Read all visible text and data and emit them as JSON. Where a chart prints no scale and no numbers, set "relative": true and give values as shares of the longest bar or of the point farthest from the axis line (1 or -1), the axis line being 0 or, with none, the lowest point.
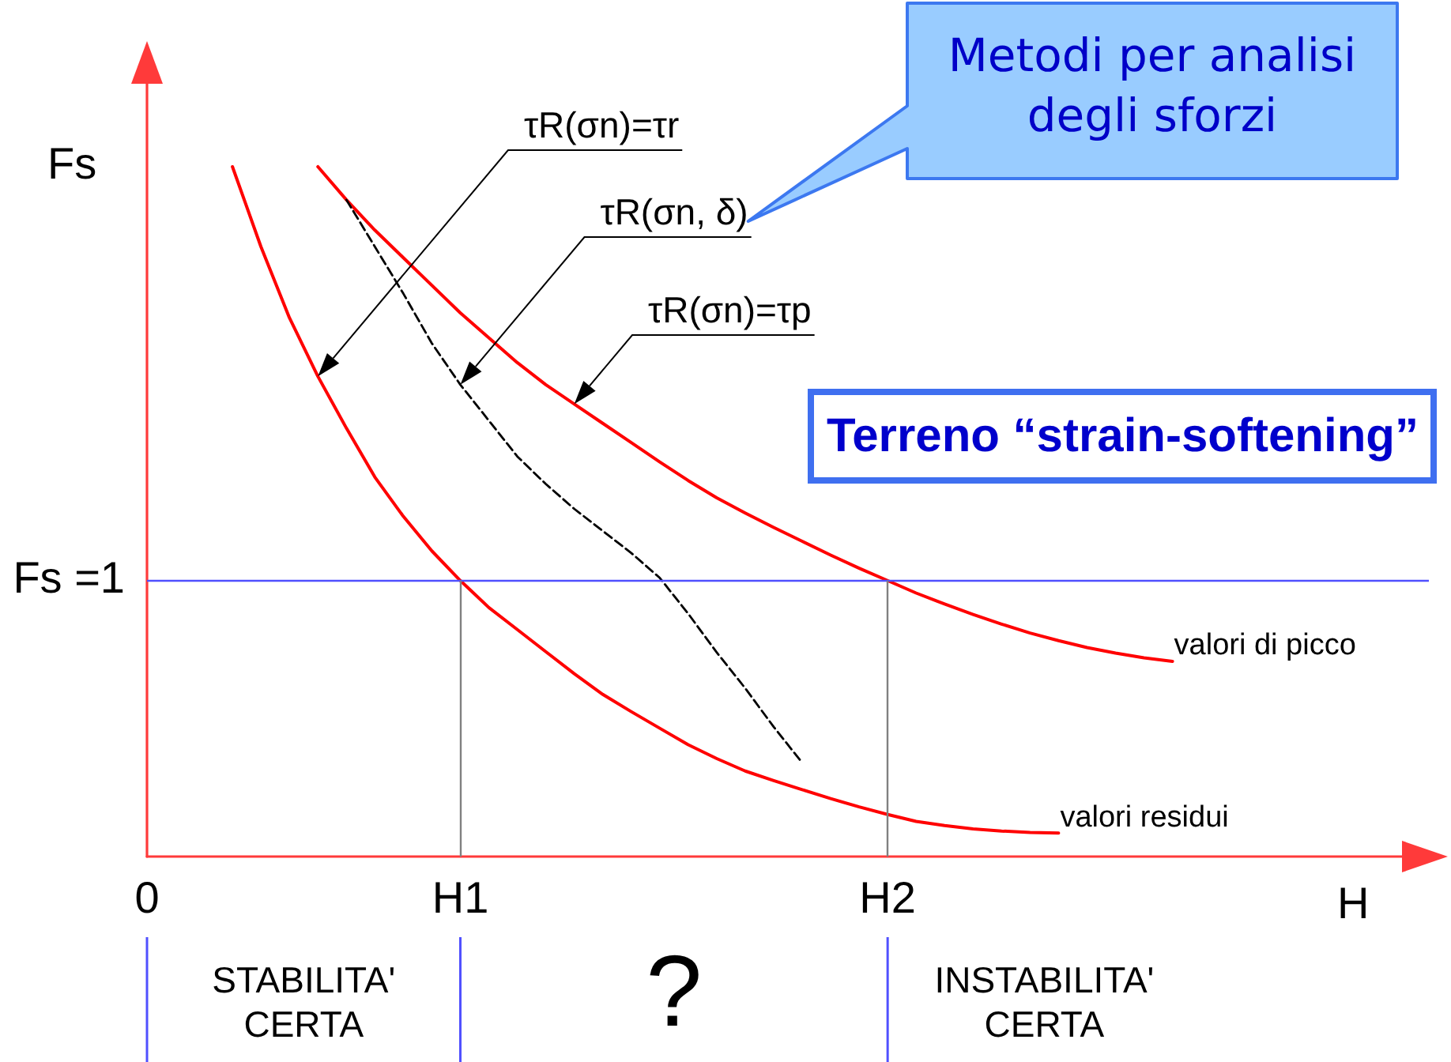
{
  "chart_data": {
    "type": "line",
    "title": "Terreno “strain-softening”",
    "xlabel": "H",
    "ylabel": "Fs",
    "relative": true,
    "tick_labels": "x",
    "marker": "none",
    "line_style": "solid",
    "categories": [
      "0",
      null,
      null,
      null,
      null,
      null,
      null,
      null,
      null,
      null,
      null,
      "H1",
      null,
      null,
      null,
      null,
      null,
      null,
      null,
      null,
      null,
      null,
      null,
      null,
      null,
      null,
      "H2",
      null,
      null,
      null,
      null,
      null,
      null,
      null,
      null,
      null,
      null,
      null,
      null,
      null,
      null,
      null,
      null,
      null,
      null,
      null
    ],
    "series": [
      {
        "name": "valori residui",
        "color": "#ff0000",
        "values": [
          null,
          null,
          null,
          1.0,
          0.884,
          0.781,
          0.696,
          0.621,
          0.55,
          0.493,
          0.443,
          0.4,
          0.361,
          0.329,
          0.297,
          0.265,
          0.235,
          0.21,
          0.186,
          0.162,
          0.142,
          0.124,
          0.11,
          0.097,
          0.084,
          0.072,
          0.061,
          0.051,
          0.045,
          0.04,
          0.037,
          0.035,
          0.034,
          null,
          null,
          null,
          null,
          null,
          null,
          null,
          null,
          null,
          null,
          null,
          null,
          null
        ]
      },
      {
        "name": "valori di picco",
        "color": "#ff0000",
        "values": [
          null,
          null,
          null,
          null,
          null,
          null,
          1.0,
          0.952,
          0.908,
          0.868,
          0.828,
          0.788,
          0.752,
          0.716,
          0.684,
          0.656,
          0.628,
          0.6,
          0.572,
          0.545,
          0.52,
          0.498,
          0.477,
          0.457,
          0.437,
          0.418,
          0.4,
          0.382,
          0.366,
          0.351,
          0.337,
          0.324,
          0.313,
          0.303,
          0.295,
          0.288,
          0.283,
          null,
          null,
          null,
          null,
          null,
          null,
          null,
          null,
          null
        ]
      },
      {
        "color": "#000000",
        "line_style": "dashed",
        "values": [
          null,
          null,
          null,
          null,
          null,
          null,
          null,
          0.952,
          0.884,
          0.816,
          0.744,
          0.684,
          0.632,
          0.58,
          0.54,
          0.504,
          0.472,
          0.44,
          0.404,
          0.352,
          0.296,
          0.244,
          0.188,
          0.136,
          null,
          null,
          null,
          null,
          null,
          null,
          null,
          null,
          null,
          null,
          null,
          null,
          null,
          null,
          null,
          null,
          null,
          null,
          null,
          null,
          null,
          null
        ]
      }
    ],
    "ref_lines": [
      {
        "axis": "y",
        "value": 0.4,
        "color": "#5050ff"
      },
      {
        "axis": "x",
        "value": "H1",
        "color": "#808080"
      },
      {
        "axis": "x",
        "value": "H2",
        "color": "#808080"
      }
    ],
    "annotations": [
      "Fs =1",
      "τR(σn)=τr",
      "τR(σn, δ)",
      "τR(σn)=τp",
      "Metodi per analisi degli sforzi",
      "STABILITA' CERTA",
      "?",
      "INSTABILITA' CERTA"
    ]
  }
}
